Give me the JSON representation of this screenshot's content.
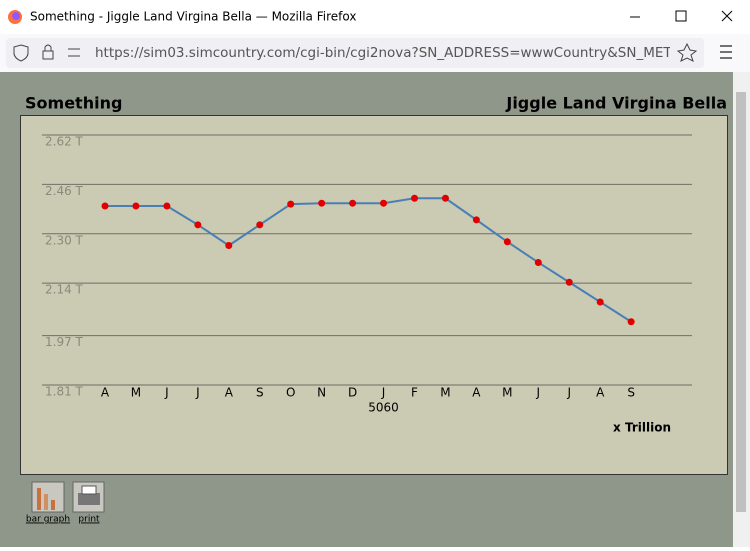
{
  "window": {
    "title": "Something - Jiggle Land Virgina Bella — Mozilla Firefox"
  },
  "browser": {
    "url": "https://sim03.simcountry.com/cgi-bin/cgi2nova?SN_ADDRESS=wwwCountry&SN_METHOD=w"
  },
  "page": {
    "heading_left": "Something",
    "heading_right": "Jiggle Land Virgina Bella"
  },
  "chart_data": {
    "type": "line",
    "categories": [
      "A",
      "M",
      "J",
      "J",
      "A",
      "S",
      "O",
      "N",
      "D",
      "J",
      "F",
      "M",
      "A",
      "M",
      "J",
      "J",
      "A",
      "S"
    ],
    "values": [
      2.39,
      2.39,
      2.39,
      2.329,
      2.262,
      2.329,
      2.396,
      2.399,
      2.399,
      2.399,
      2.415,
      2.415,
      2.345,
      2.274,
      2.207,
      2.143,
      2.079,
      2.015
    ],
    "color": "#4a7fb5",
    "marker_color": "#e00000",
    "ylim": [
      1.81,
      2.62
    ],
    "yticks": [
      {
        "value": 2.62,
        "label": "2.62 T"
      },
      {
        "value": 2.46,
        "label": "2.46 T"
      },
      {
        "value": 2.3,
        "label": "2.30 T"
      },
      {
        "value": 2.14,
        "label": "2.14 T"
      },
      {
        "value": 1.97,
        "label": "1.97 T"
      },
      {
        "value": 1.81,
        "label": "1.81 T"
      }
    ],
    "grid": true,
    "x_annotation": "5060",
    "unit_note": "x Trillion"
  },
  "toolbar": {
    "items": [
      {
        "label": "bar graph"
      },
      {
        "label": "print"
      }
    ]
  }
}
